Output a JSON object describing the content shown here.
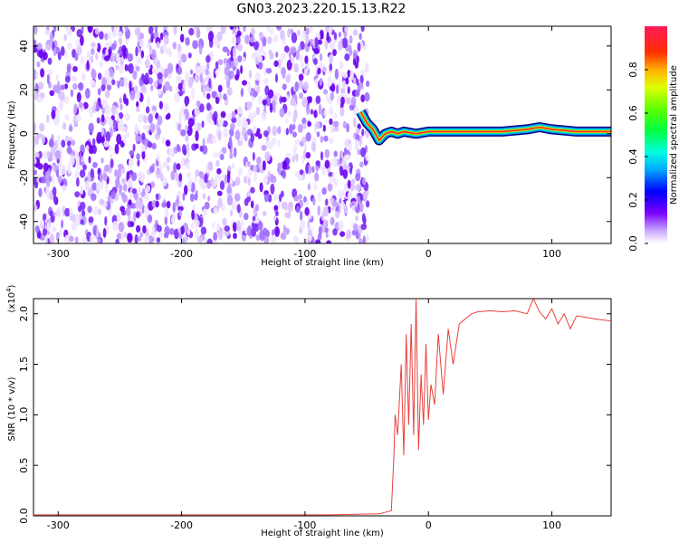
{
  "title": "GN03.2023.220.15.13.R22",
  "chart_data": [
    {
      "type": "heatmap",
      "xlabel": "Height of straight line (km)",
      "ylabel": "Frequency (Hz)",
      "xlim": [
        -320,
        148
      ],
      "ylim": [
        -50,
        49
      ],
      "xticks": [
        -300,
        -200,
        -100,
        0,
        100
      ],
      "yticks": [
        -40,
        -20,
        0,
        20,
        40
      ],
      "colorbar": {
        "label": "Normalized spectral amplitude",
        "range": [
          0,
          1
        ],
        "ticks": [
          0.0,
          0.2,
          0.4,
          0.6,
          0.8
        ]
      },
      "features": {
        "noise_region_x": [
          -320,
          -52
        ],
        "signal_track": [
          [
            -55,
            10
          ],
          [
            -50,
            5
          ],
          [
            -45,
            2
          ],
          [
            -40,
            -3
          ],
          [
            -35,
            0
          ],
          [
            -30,
            1
          ],
          [
            -25,
            0
          ],
          [
            -20,
            1
          ],
          [
            -10,
            0
          ],
          [
            0,
            1
          ],
          [
            20,
            1
          ],
          [
            40,
            1
          ],
          [
            60,
            1
          ],
          [
            80,
            2
          ],
          [
            90,
            3
          ],
          [
            100,
            2
          ],
          [
            120,
            1
          ],
          [
            148,
            1
          ]
        ]
      }
    },
    {
      "type": "line",
      "xlabel": "Height of straight line (km)",
      "ylabel": "SNR (10 * v/v)",
      "y_multiplier": "(x10",
      "y_multiplier_exp": "4",
      "xlim": [
        -320,
        148
      ],
      "ylim": [
        0,
        2.15
      ],
      "xticks": [
        -300,
        -200,
        -100,
        0,
        100
      ],
      "yticks": [
        "0.0",
        "0.5",
        "1.0",
        "1.5",
        "2.0"
      ],
      "series": [
        {
          "color": "#e8413c",
          "x": [
            -320,
            -280,
            -240,
            -200,
            -160,
            -120,
            -80,
            -40,
            -30,
            -28,
            -27,
            -25,
            -22,
            -20,
            -18,
            -16,
            -14,
            -12,
            -10,
            -8,
            -6,
            -4,
            -2,
            0,
            2,
            5,
            8,
            12,
            16,
            20,
            25,
            30,
            35,
            40,
            50,
            60,
            70,
            80,
            85,
            90,
            95,
            100,
            105,
            110,
            115,
            120,
            130,
            140,
            148
          ],
          "values": [
            0.01,
            0.01,
            0.01,
            0.01,
            0.01,
            0.01,
            0.01,
            0.02,
            0.05,
            0.6,
            1.0,
            0.8,
            1.5,
            0.6,
            1.8,
            0.9,
            1.9,
            0.8,
            2.15,
            0.65,
            1.4,
            0.9,
            1.7,
            0.95,
            1.3,
            1.1,
            1.8,
            1.2,
            1.85,
            1.5,
            1.9,
            1.95,
            2.0,
            2.02,
            2.03,
            2.02,
            2.03,
            2.0,
            2.15,
            2.02,
            1.95,
            2.05,
            1.9,
            2.0,
            1.85,
            1.98,
            1.96,
            1.94,
            1.93
          ]
        }
      ]
    }
  ]
}
